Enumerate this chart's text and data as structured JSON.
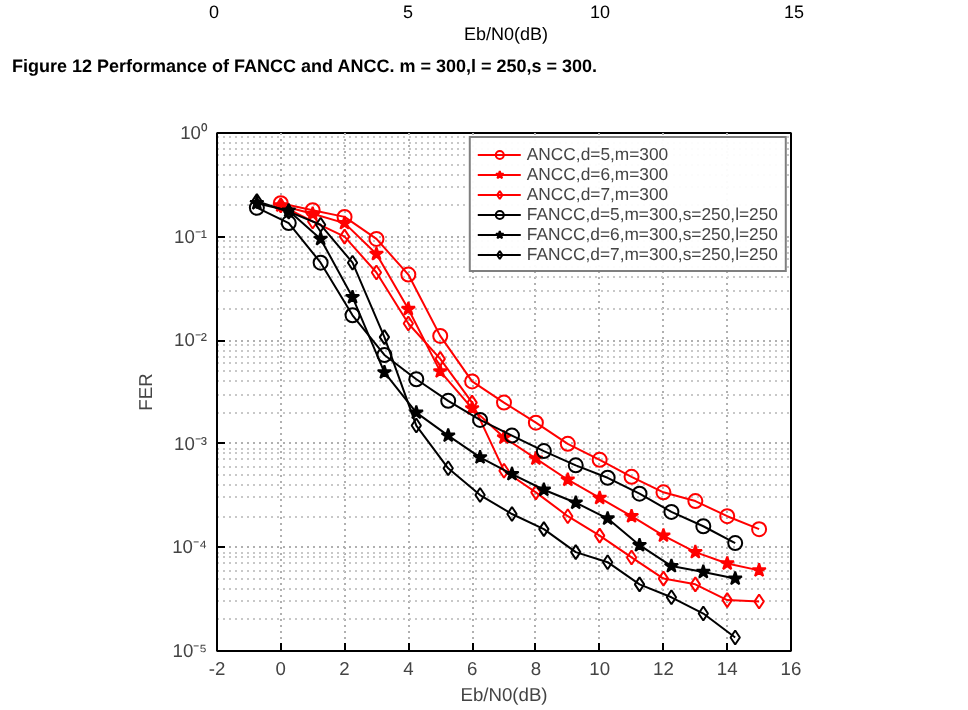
{
  "chart_data": {
    "type": "line",
    "xlabel": "Eb/N0(dB)",
    "ylabel": "FER",
    "log": "y",
    "xlim": [
      -2,
      16
    ],
    "xticks": [
      -2,
      0,
      2,
      4,
      6,
      8,
      10,
      12,
      14,
      16
    ],
    "ylim": [
      1e-05,
      1
    ],
    "yticks": [
      {
        "value": 1e-05,
        "label": "10⁻⁵"
      },
      {
        "value": 0.0001,
        "label": "10⁻⁴"
      },
      {
        "value": 0.001,
        "label": "10⁻³"
      },
      {
        "value": 0.01,
        "label": "10⁻²"
      },
      {
        "value": 0.1,
        "label": "10⁻¹"
      },
      {
        "value": 1,
        "label": "10⁰"
      }
    ],
    "grid": true,
    "legend": "top right",
    "line_style": "solid",
    "annotations": [
      "0",
      "5",
      "10",
      "15",
      "Eb/N0(dB)",
      "Figure 12 Performance of FANCC and ANCC. m = 300,l = 250,s = 300."
    ],
    "series": [
      {
        "name": "ANCC,d=5,m=300",
        "color": "#ff0000",
        "marker": "circle",
        "x": [
          0,
          1,
          2,
          3,
          4,
          5,
          6,
          7,
          8,
          9,
          10,
          11,
          12,
          13,
          14,
          15
        ],
        "values": [
          0.21,
          0.18,
          0.155,
          0.095,
          0.043,
          0.011,
          0.004,
          0.0025,
          0.0016,
          0.001,
          0.0007,
          0.00048,
          0.00034,
          0.00028,
          0.0002,
          0.00015
        ]
      },
      {
        "name": "ANCC,d=6,m=300",
        "color": "#ff0000",
        "marker": "star",
        "x": [
          0,
          1,
          2,
          3,
          4,
          5,
          6,
          7,
          8,
          9,
          10,
          11,
          12,
          13,
          14,
          15
        ],
        "values": [
          0.2,
          0.166,
          0.135,
          0.068,
          0.02,
          0.005,
          0.0022,
          0.00115,
          0.00072,
          0.00045,
          0.0003,
          0.0002,
          0.00013,
          9e-05,
          7e-05,
          6e-05
        ]
      },
      {
        "name": "ANCC,d=7,m=300",
        "color": "#ff0000",
        "marker": "diamond",
        "x": [
          0,
          1,
          2,
          3,
          4,
          5,
          6,
          7,
          8,
          9,
          10,
          11,
          12,
          13,
          14,
          15
        ],
        "values": [
          0.2,
          0.14,
          0.1,
          0.045,
          0.0145,
          0.0066,
          0.0025,
          0.00055,
          0.00034,
          0.0002,
          0.00013,
          8e-05,
          5e-05,
          4.4e-05,
          3.1e-05,
          3e-05
        ]
      },
      {
        "name": "FANCC,d=5,m=300,s=250,l=250",
        "color": "#000000",
        "marker": "circle",
        "x": [
          -0.75,
          0.25,
          1.25,
          2.25,
          3.25,
          4.25,
          5.25,
          6.25,
          7.25,
          8.25,
          9.25,
          10.25,
          11.25,
          12.25,
          13.25,
          14.25
        ],
        "values": [
          0.19,
          0.135,
          0.056,
          0.0174,
          0.0072,
          0.0042,
          0.0026,
          0.0017,
          0.0012,
          0.00085,
          0.00062,
          0.00047,
          0.00033,
          0.00022,
          0.00016,
          0.00011
        ]
      },
      {
        "name": "FANCC,d=6,m=300,s=250,l=250",
        "color": "#000000",
        "marker": "star",
        "x": [
          -0.75,
          0.25,
          1.25,
          2.25,
          3.25,
          4.25,
          5.25,
          6.25,
          7.25,
          8.25,
          9.25,
          10.25,
          11.25,
          12.25,
          13.25,
          14.25
        ],
        "values": [
          0.21,
          0.178,
          0.095,
          0.026,
          0.0049,
          0.002,
          0.0012,
          0.00074,
          0.00051,
          0.00036,
          0.00027,
          0.00019,
          0.000105,
          6.6e-05,
          5.8e-05,
          5e-05
        ]
      },
      {
        "name": "FANCC,d=7,m=300,s=250,l=250",
        "color": "#000000",
        "marker": "diamond",
        "x": [
          -0.75,
          0.25,
          1.25,
          2.25,
          3.25,
          4.25,
          5.25,
          6.25,
          7.25,
          8.25,
          9.25,
          10.25,
          11.25,
          12.25,
          13.25,
          14.25
        ],
        "values": [
          0.22,
          0.174,
          0.13,
          0.056,
          0.0107,
          0.0015,
          0.00058,
          0.00032,
          0.00021,
          0.00015,
          9e-05,
          7.2e-05,
          4.4e-05,
          3.3e-05,
          2.3e-05,
          1.35e-05
        ]
      }
    ]
  }
}
